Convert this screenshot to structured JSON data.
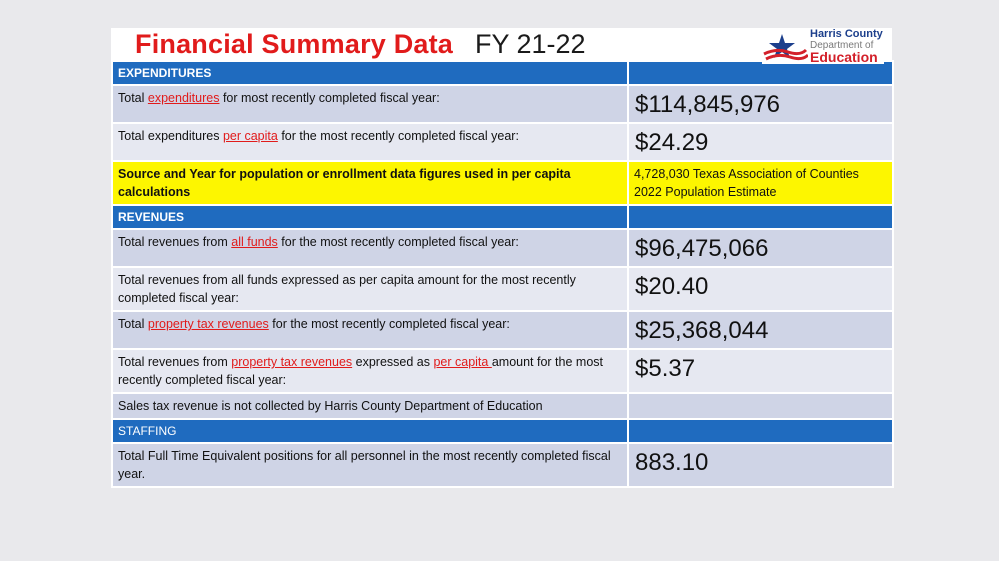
{
  "title": {
    "red": "Financial Summary Data",
    "black": "FY 21-22"
  },
  "logo": {
    "line1": "Harris County",
    "line2": "Department of",
    "line3": "Education"
  },
  "sections": {
    "expenditures": "EXPENDITURES",
    "revenues": "REVENUES",
    "staffing": "STAFFING"
  },
  "rows": {
    "r1": {
      "pre": "Total ",
      "link": "expenditures",
      "post": " for most recently completed fiscal year:",
      "value": "$114,845,976"
    },
    "r2": {
      "pre": "Total expenditures ",
      "link": "per capita",
      "post": " for the most recently completed fiscal year:",
      "value": "$24.29"
    },
    "r3": {
      "label": "Source and Year for population or enrollment data figures used in per capita calculations",
      "value_line1": "4,728,030 Texas Association of Counties",
      "value_line2": "2022 Population Estimate"
    },
    "r4": {
      "pre": "Total revenues from ",
      "link": "all funds",
      "post": " for the most recently completed fiscal year:",
      "value": "$96,475,066"
    },
    "r5": {
      "label": "Total revenues from all funds expressed as per capita amount for the most recently completed fiscal year:",
      "value": "$20.40"
    },
    "r6": {
      "pre": "Total ",
      "link": "property tax revenues",
      "post": " for the most recently completed fiscal year:",
      "value": "$25,368,044"
    },
    "r7": {
      "pre": "Total revenues from ",
      "link": "property tax revenues",
      "mid": " expressed as ",
      "link2": "per capita ",
      "post": " amount for the most recently completed fiscal year:",
      "value": "$5.37"
    },
    "r8": {
      "label": "Sales tax revenue is not collected by Harris County Department of Education",
      "value": ""
    },
    "r9": {
      "label": "Total Full Time Equivalent positions for all personnel in the most recently completed fiscal year.",
      "value": "883.10"
    }
  },
  "colors": {
    "header_blue": "#1f6bbf",
    "row_dark": "#cfd4e6",
    "row_light": "#e6e8f1",
    "highlight_yellow": "#fdf600",
    "title_red": "#e11b1b"
  }
}
